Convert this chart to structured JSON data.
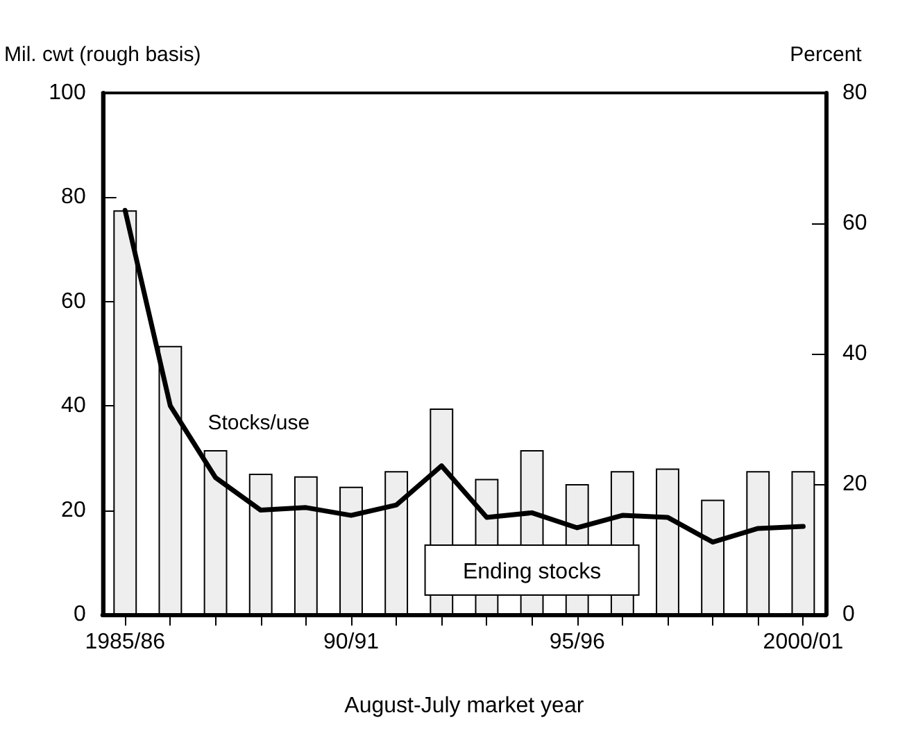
{
  "chart_data": {
    "type": "bar",
    "xlabel": "August-July market year",
    "ylabel": "Mil. cwt (rough basis)",
    "y2label": "Percent",
    "categories": [
      "1985/86",
      null,
      null,
      null,
      null,
      "90/91",
      null,
      null,
      null,
      null,
      "95/96",
      null,
      null,
      null,
      null,
      "2000/01"
    ],
    "series": [
      {
        "name": "Ending stocks",
        "color": "#eeeeee",
        "values": [
          77.5,
          51.5,
          31.5,
          27,
          26.5,
          24.5,
          27.5,
          39.5,
          26,
          31.5,
          25,
          27.5,
          28,
          22,
          27.5,
          27.5
        ]
      },
      {
        "name": "Stocks/use",
        "type": "line",
        "axis": "y2",
        "color": "#000000",
        "values": [
          62,
          32,
          21,
          16,
          16.4,
          15.2,
          16.8,
          22.8,
          14.9,
          15.6,
          13.3,
          15.2,
          14.9,
          11.1,
          13.2,
          13.5
        ]
      }
    ],
    "ylim": [
      0,
      100
    ],
    "yticks": [
      0,
      20,
      40,
      60,
      80,
      100
    ],
    "y2lim": [
      0,
      80
    ],
    "y2ticks": [
      0,
      20,
      40,
      60,
      80
    ],
    "grid": false,
    "legend": false,
    "marker": "none",
    "line_style": "solid"
  }
}
